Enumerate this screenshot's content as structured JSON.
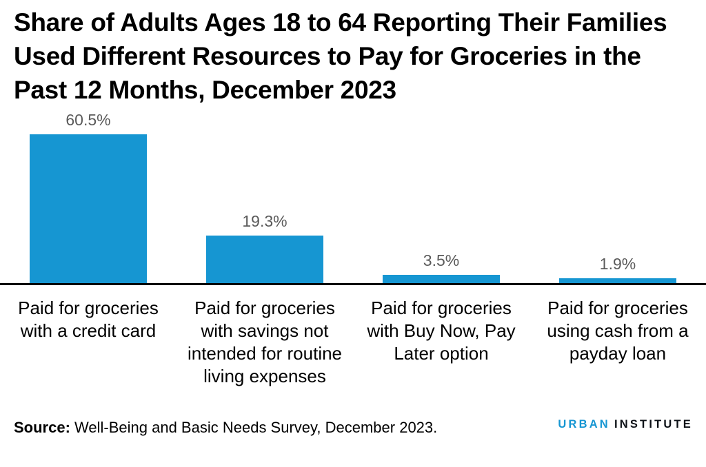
{
  "title": "Share of Adults Ages 18 to 64 Reporting Their Families Used Different Resources to Pay for Groceries in the Past 12 Months, December 2023",
  "chart_data": {
    "type": "bar",
    "categories": [
      "Paid for groceries with a credit card",
      "Paid for groceries with savings not intended for routine living expenses",
      "Paid for groceries with Buy Now, Pay Later option",
      "Paid for groceries using cash from a payday loan"
    ],
    "values": [
      60.5,
      19.3,
      3.5,
      1.9
    ],
    "value_labels": [
      "60.5%",
      "19.3%",
      "3.5%",
      "1.9%"
    ],
    "title": "Share of Adults Ages 18 to 64 Reporting Their Families Used Different Resources to Pay for Groceries in the Past 12 Months, December 2023",
    "xlabel": "",
    "ylabel": "",
    "ylim": [
      0,
      70
    ],
    "grid": false,
    "legend": "none",
    "bar_color": "#1696d2",
    "value_label_color": "#5a5a5a",
    "axis_line_color": "#000000"
  },
  "source": {
    "label": "Source:",
    "text": " Well-Being and Basic Needs Survey, December 2023."
  },
  "logo": {
    "part1": "URBAN",
    "part2": "INSTITUTE",
    "part1_color": "#1696d2",
    "part2_color": "#0d1117"
  }
}
